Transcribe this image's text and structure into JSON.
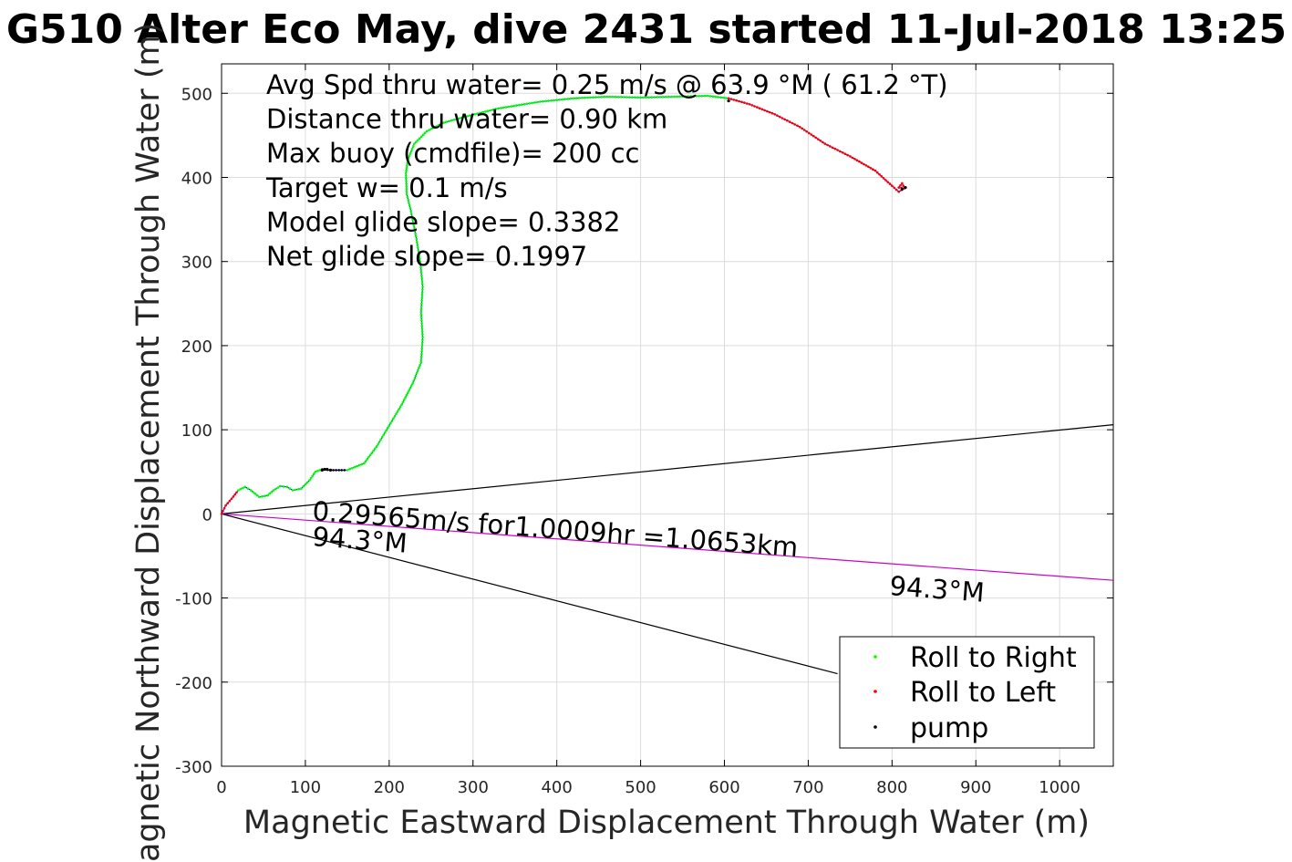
{
  "chart_data": {
    "type": "scatter",
    "title": "G510 Alter Eco May, dive 2431 started 11-Jul-2018 13:25",
    "xlabel": "Magnetic Eastward Displacement Through Water (m)",
    "ylabel": "Magnetic Northward Displacement Through Water (m)",
    "xlim": [
      0,
      1064
    ],
    "ylim": [
      -300,
      535
    ],
    "xticks": [
      "0",
      "100",
      "200",
      "300",
      "400",
      "500",
      "600",
      "700",
      "800",
      "900",
      "1000"
    ],
    "yticks": [
      "-300",
      "-200",
      "-100",
      "0",
      "100",
      "200",
      "300",
      "400",
      "500"
    ],
    "grid": true,
    "legend_position": "bottom-right",
    "annotations": [
      "Avg Spd thru water=  0.25 m/s @  63.9 °M ( 61.2 °T)",
      "Distance thru water=  0.90 km",
      "Max buoy (cmdfile)= 200 cc",
      "Target w= 0.1 m/s",
      "Model glide slope= 0.3382",
      "Net glide slope= 0.1997"
    ],
    "current_label": "0.29565m/s for1.0009hr =1.0653km",
    "heading_labels": [
      "94.3°M",
      "94.3°M"
    ],
    "track": {
      "color": "#0000ff",
      "x": [
        0,
        5,
        12,
        20,
        28,
        35,
        45,
        55,
        62,
        70,
        78,
        85,
        95,
        105,
        112,
        120,
        130,
        150,
        170,
        185,
        200,
        215,
        228,
        238,
        240,
        238,
        240,
        237,
        232,
        226,
        221,
        220,
        222,
        230,
        245,
        265,
        290,
        330,
        380,
        420,
        460,
        500,
        540,
        580,
        605,
        630,
        660,
        690,
        720,
        750,
        780,
        800,
        808,
        815,
        812,
        808,
        815
      ],
      "y": [
        0,
        10,
        18,
        28,
        32,
        28,
        20,
        22,
        28,
        33,
        32,
        28,
        30,
        40,
        50,
        53,
        52,
        52,
        60,
        80,
        105,
        130,
        155,
        180,
        210,
        240,
        270,
        300,
        330,
        360,
        380,
        405,
        420,
        440,
        455,
        465,
        472,
        482,
        490,
        494,
        496,
        495,
        496,
        497,
        494,
        487,
        475,
        460,
        440,
        425,
        408,
        390,
        383,
        387,
        393,
        388,
        387
      ]
    },
    "series": [
      {
        "name": "Roll to Right",
        "color": "#00ff00",
        "marker": "·"
      },
      {
        "name": "Roll to Left",
        "color": "#ff0000",
        "marker": "·"
      },
      {
        "name": "pump",
        "color": "#000000",
        "marker": "·"
      }
    ],
    "lines": [
      {
        "kind": "upper-bound",
        "color": "#000000",
        "x": [
          0,
          1064
        ],
        "y": [
          0,
          106
        ]
      },
      {
        "kind": "current-vector",
        "color": "#cc00cc",
        "x": [
          0,
          1064
        ],
        "y": [
          0,
          -79
        ]
      },
      {
        "kind": "lower-bound",
        "color": "#000000",
        "x": [
          0,
          735
        ],
        "y": [
          0,
          -190
        ]
      }
    ]
  }
}
